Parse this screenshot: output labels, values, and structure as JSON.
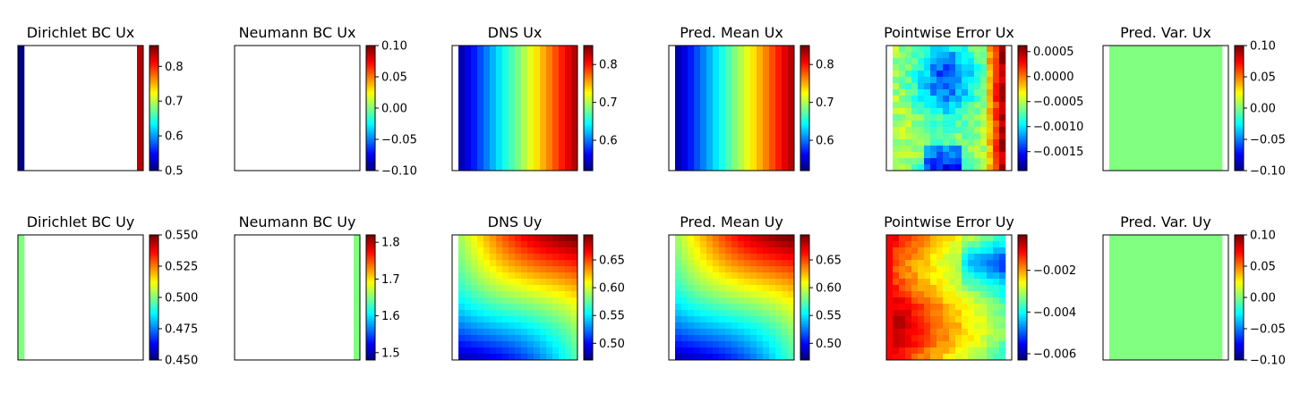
{
  "chart_data": [
    {
      "type": "heatmap",
      "title": "Dirichlet BC Ux",
      "field": "dir_ux",
      "colorbar_ticks": [
        "0.5",
        "0.6",
        "0.7",
        "0.8"
      ],
      "colorbar_range": [
        0.5,
        0.86
      ]
    },
    {
      "type": "heatmap",
      "title": "Neumann BC Ux",
      "field": "empty",
      "colorbar_ticks": [
        "−0.10",
        "−0.05",
        "0.00",
        "0.05",
        "0.10"
      ],
      "colorbar_range": [
        -0.1,
        0.1
      ]
    },
    {
      "type": "heatmap",
      "title": "DNS Ux",
      "field": "ux",
      "colorbar_ticks": [
        "0.6",
        "0.7",
        "0.8"
      ],
      "colorbar_range": [
        0.52,
        0.85
      ]
    },
    {
      "type": "heatmap",
      "title": "Pred. Mean Ux",
      "field": "ux",
      "colorbar_ticks": [
        "0.6",
        "0.7",
        "0.8"
      ],
      "colorbar_range": [
        0.52,
        0.85
      ]
    },
    {
      "type": "heatmap",
      "title": "Pointwise Error Ux",
      "field": "err_ux",
      "colorbar_ticks": [
        "0.0005",
        "0.0000",
        "−0.0005",
        "−0.0010",
        "−0.0015"
      ],
      "colorbar_range": [
        -0.00188,
        0.00062
      ]
    },
    {
      "type": "heatmap",
      "title": "Pred. Var. Ux",
      "field": "zero",
      "colorbar_ticks": [
        "−0.10",
        "−0.05",
        "0.00",
        "0.05",
        "0.10"
      ],
      "colorbar_range": [
        -0.1,
        0.1
      ]
    },
    {
      "type": "heatmap",
      "title": "Dirichlet BC Uy",
      "field": "dir_uy",
      "colorbar_ticks": [
        "0.450",
        "0.475",
        "0.500",
        "0.525",
        "0.550"
      ],
      "colorbar_range": [
        0.45,
        0.55
      ]
    },
    {
      "type": "heatmap",
      "title": "Neumann BC Uy",
      "field": "neu_uy",
      "colorbar_ticks": [
        "1.5",
        "1.6",
        "1.7",
        "1.8"
      ],
      "colorbar_range": [
        1.48,
        1.82
      ]
    },
    {
      "type": "heatmap",
      "title": "DNS Uy",
      "field": "uy",
      "colorbar_ticks": [
        "0.50",
        "0.55",
        "0.60",
        "0.65"
      ],
      "colorbar_range": [
        0.47,
        0.695
      ]
    },
    {
      "type": "heatmap",
      "title": "Pred. Mean Uy",
      "field": "uy",
      "colorbar_ticks": [
        "0.50",
        "0.55",
        "0.60",
        "0.65"
      ],
      "colorbar_range": [
        0.47,
        0.695
      ]
    },
    {
      "type": "heatmap",
      "title": "Pointwise Error Uy",
      "field": "err_uy",
      "colorbar_ticks": [
        "−0.002",
        "−0.004",
        "−0.006"
      ],
      "colorbar_range": [
        -0.0063,
        -0.0003
      ]
    },
    {
      "type": "heatmap",
      "title": "Pred. Var. Uy",
      "field": "zero",
      "colorbar_ticks": [
        "−0.10",
        "−0.05",
        "0.00",
        "0.05",
        "0.10"
      ],
      "colorbar_range": [
        -0.1,
        0.1
      ]
    }
  ],
  "colormap": "jet",
  "grid_size": 20
}
